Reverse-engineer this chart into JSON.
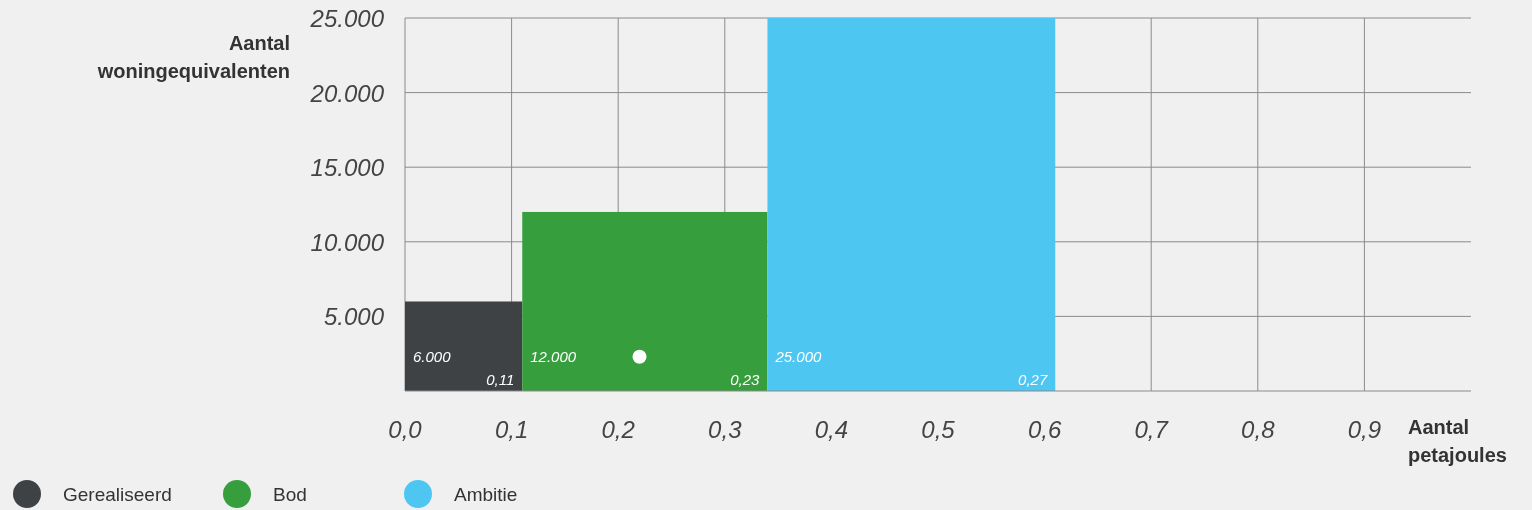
{
  "chart_data": {
    "type": "histogram",
    "xlabel": "Aantal petajoules",
    "ylabel": "Aantal woningequivalenten",
    "bins": [
      0,
      0.11,
      0.34,
      0.61
    ],
    "series": [
      {
        "name": "Gerealiseerd",
        "color": "#3f4244",
        "values": [
          6000,
          null,
          null
        ],
        "value_labels": [
          "6.000",
          null,
          null
        ]
      },
      {
        "name": "Bod",
        "color": "#369e3c",
        "values": [
          null,
          12000,
          null
        ],
        "value_labels": [
          null,
          "12.000",
          null
        ]
      },
      {
        "name": "Ambitie",
        "color": "#4dc6f2",
        "values": [
          null,
          null,
          25000
        ],
        "value_labels": [
          null,
          null,
          "25.000"
        ]
      },
      {
        "type": "scatter",
        "color": "#ffffff",
        "x": [
          0.22
        ],
        "values": [
          2300
        ]
      }
    ],
    "annotations": [
      {
        "text": "0,11",
        "x": 0.11,
        "y": 0
      },
      {
        "text": "0,23",
        "x": 0.34,
        "y": 0
      },
      {
        "text": "0,27",
        "x": 0.61,
        "y": 0
      }
    ],
    "xlim": [
      0,
      1
    ],
    "xticks": [
      {
        "value": 0,
        "label": "0,0"
      },
      {
        "value": 0.1,
        "label": "0,1"
      },
      {
        "value": 0.2,
        "label": "0,2"
      },
      {
        "value": 0.3,
        "label": "0,3"
      },
      {
        "value": 0.4,
        "label": "0,4"
      },
      {
        "value": 0.5,
        "label": "0,5"
      },
      {
        "value": 0.6,
        "label": "0,6"
      },
      {
        "value": 0.7,
        "label": "0,7"
      },
      {
        "value": 0.8,
        "label": "0,8"
      },
      {
        "value": 0.9,
        "label": "0,9"
      }
    ],
    "ylim": [
      0,
      25000
    ],
    "yticks": [
      {
        "value": 5000,
        "label": "5.000"
      },
      {
        "value": 10000,
        "label": "10.000"
      },
      {
        "value": 15000,
        "label": "15.000"
      },
      {
        "value": 20000,
        "label": "20.000"
      },
      {
        "value": 25000,
        "label": "25.000"
      }
    ],
    "grid": true,
    "legend": "bottom left"
  }
}
